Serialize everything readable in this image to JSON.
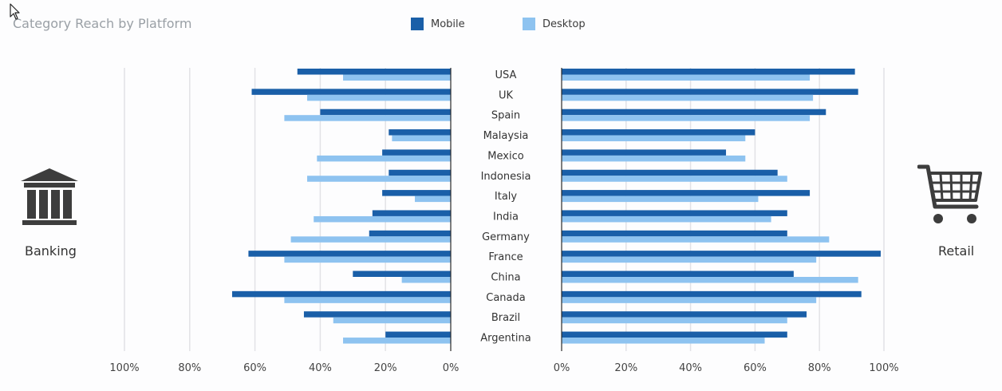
{
  "chart_data": {
    "type": "bar",
    "orientation": "horizontal",
    "layout": "butterfly",
    "title": "Category Reach by Platform",
    "categories": [
      "USA",
      "UK",
      "Spain",
      "Malaysia",
      "Mexico",
      "Indonesia",
      "Italy",
      "India",
      "Germany",
      "France",
      "China",
      "Canada",
      "Brazil",
      "Argentina"
    ],
    "legend": [
      {
        "name": "Mobile",
        "color": "#1a5fa8"
      },
      {
        "name": "Desktop",
        "color": "#8ec3f0"
      }
    ],
    "panels": [
      {
        "label": "Banking",
        "icon": "bank-icon",
        "side": "left",
        "xlim": [
          0,
          100
        ],
        "ticks": [
          "100%",
          "80%",
          "60%",
          "40%",
          "20%",
          "0%"
        ],
        "tick_values": [
          100,
          80,
          60,
          40,
          20,
          0
        ],
        "series": [
          {
            "name": "Mobile",
            "values": [
              47,
              61,
              40,
              19,
              21,
              19,
              21,
              24,
              25,
              62,
              30,
              67,
              45,
              20
            ]
          },
          {
            "name": "Desktop",
            "values": [
              33,
              44,
              51,
              18,
              41,
              44,
              11,
              42,
              49,
              51,
              15,
              51,
              36,
              33
            ]
          }
        ]
      },
      {
        "label": "Retail",
        "icon": "shopping-cart-icon",
        "side": "right",
        "xlim": [
          0,
          100
        ],
        "ticks": [
          "0%",
          "20%",
          "40%",
          "60%",
          "80%",
          "100%"
        ],
        "tick_values": [
          0,
          20,
          40,
          60,
          80,
          100
        ],
        "series": [
          {
            "name": "Mobile",
            "values": [
              91,
              92,
              82,
              60,
              51,
              67,
              77,
              70,
              70,
              99,
              72,
              93,
              76,
              70
            ]
          },
          {
            "name": "Desktop",
            "values": [
              77,
              78,
              77,
              57,
              57,
              70,
              61,
              65,
              83,
              79,
              92,
              79,
              70,
              63
            ]
          }
        ]
      }
    ],
    "grid": true,
    "legend_position": "top-center"
  },
  "colors": {
    "mobile": "#1a5fa8",
    "desktop": "#8ec3f0",
    "grid": "#e2e2e6",
    "text": "#333333",
    "icon": "#3d3d3d"
  }
}
